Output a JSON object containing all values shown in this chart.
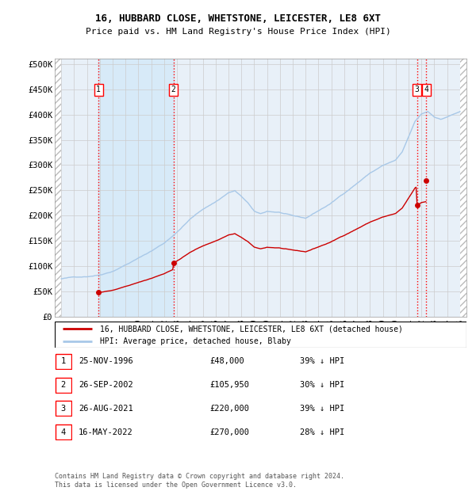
{
  "title1": "16, HUBBARD CLOSE, WHETSTONE, LEICESTER, LE8 6XT",
  "title2": "Price paid vs. HM Land Registry's House Price Index (HPI)",
  "hpi_color": "#a8c8e8",
  "hpi_fill_color": "#d0e8f8",
  "price_color": "#cc0000",
  "plot_bg_color": "#e8f0f8",
  "grid_color": "#cccccc",
  "legend_label_price": "16, HUBBARD CLOSE, WHETSTONE, LEICESTER, LE8 6XT (detached house)",
  "legend_label_hpi": "HPI: Average price, detached house, Blaby",
  "footer": "Contains HM Land Registry data © Crown copyright and database right 2024.\nThis data is licensed under the Open Government Licence v3.0.",
  "sales": [
    {
      "num": 1,
      "date_dec": 1996.9,
      "price": 48000,
      "label": "25-NOV-1996",
      "price_str": "£48,000",
      "pct": "39% ↓ HPI"
    },
    {
      "num": 2,
      "date_dec": 2002.73,
      "price": 105950,
      "label": "26-SEP-2002",
      "price_str": "£105,950",
      "pct": "30% ↓ HPI"
    },
    {
      "num": 3,
      "date_dec": 2021.65,
      "price": 220000,
      "label": "26-AUG-2021",
      "price_str": "£220,000",
      "pct": "39% ↓ HPI"
    },
    {
      "num": 4,
      "date_dec": 2022.37,
      "price": 270000,
      "label": "16-MAY-2022",
      "price_str": "£270,000",
      "pct": "28% ↓ HPI"
    }
  ],
  "xlim": [
    1993.5,
    2025.5
  ],
  "ylim": [
    0,
    510000
  ],
  "yticks": [
    0,
    50000,
    100000,
    150000,
    200000,
    250000,
    300000,
    350000,
    400000,
    450000,
    500000
  ],
  "ytick_labels": [
    "£0",
    "£50K",
    "£100K",
    "£150K",
    "£200K",
    "£250K",
    "£300K",
    "£350K",
    "£400K",
    "£450K",
    "£500K"
  ],
  "xticks": [
    1994,
    1995,
    1996,
    1997,
    1998,
    1999,
    2000,
    2001,
    2002,
    2003,
    2004,
    2005,
    2006,
    2007,
    2008,
    2009,
    2010,
    2011,
    2012,
    2013,
    2014,
    2015,
    2016,
    2017,
    2018,
    2019,
    2020,
    2021,
    2022,
    2023,
    2024,
    2025
  ],
  "hpi_anchors_x": [
    1994.0,
    1995.0,
    1996.0,
    1997.0,
    1998.0,
    1999.0,
    2000.0,
    2001.0,
    2002.0,
    2003.0,
    2004.0,
    2005.0,
    2006.0,
    2007.0,
    2007.5,
    2008.0,
    2008.5,
    2009.0,
    2009.5,
    2010.0,
    2011.0,
    2012.0,
    2013.0,
    2014.0,
    2015.0,
    2016.0,
    2017.0,
    2018.0,
    2019.0,
    2020.0,
    2020.5,
    2021.0,
    2021.5,
    2022.0,
    2022.5,
    2023.0,
    2023.5,
    2024.0,
    2024.5,
    2025.0
  ],
  "hpi_anchors_y": [
    75000,
    78000,
    80000,
    84000,
    92000,
    105000,
    118000,
    132000,
    148000,
    170000,
    195000,
    215000,
    230000,
    248000,
    252000,
    240000,
    228000,
    210000,
    205000,
    210000,
    208000,
    200000,
    195000,
    210000,
    225000,
    245000,
    265000,
    285000,
    300000,
    310000,
    325000,
    355000,
    385000,
    400000,
    405000,
    395000,
    390000,
    395000,
    400000,
    405000
  ]
}
